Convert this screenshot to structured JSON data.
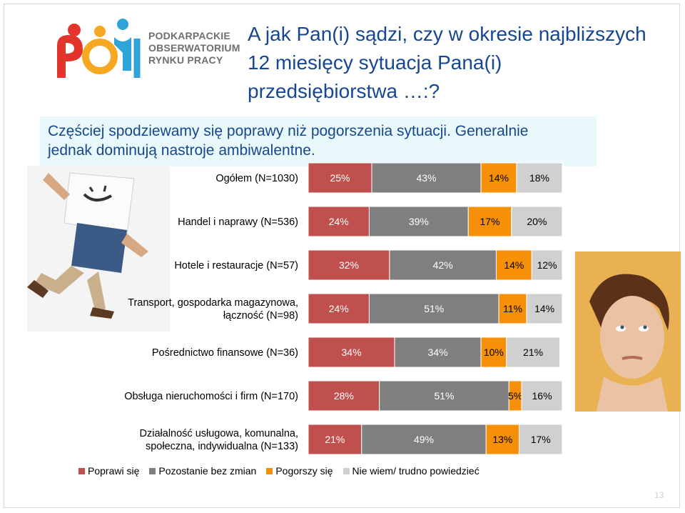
{
  "logo": {
    "lines": [
      "PODKARPACKIE",
      "OBSERWATORIUM",
      "RYNKU PRACY"
    ]
  },
  "title_lines": [
    "A jak Pan(i) sądzi, czy w okresie najbliższych",
    "12 miesięcy sytuacja Pana(i)",
    "przedsiębiorstwa …:?"
  ],
  "subtitle_lines": [
    "Częściej spodziewamy się poprawy niż pogorszenia sytuacji. Generalnie",
    "jednak dominują nastroje ambiwalentne."
  ],
  "page_number": "13",
  "colors": {
    "improve": "#c0504d",
    "nochange": "#7f7f7f",
    "worse": "#f79009",
    "dontknow": "#d0d0d0",
    "title": "#17478f"
  },
  "chart_data": {
    "type": "bar",
    "orientation": "horizontal",
    "stacked": true,
    "percent": true,
    "categories": [
      [
        "Ogółem (N=1030)"
      ],
      [
        "Handel i naprawy (N=536)"
      ],
      [
        "Hotele i restauracje (N=57)"
      ],
      [
        "Transport, gospodarka magazynowa,",
        "łączność (N=98)"
      ],
      [
        "Pośrednictwo finansowe (N=36)"
      ],
      [
        "Obsługa nieruchomości i firm (N=170)"
      ],
      [
        "Działalność usługowa, komunalna,",
        "społeczna, indywidualna (N=133)"
      ]
    ],
    "series": [
      {
        "name": "Poprawi się",
        "values": [
          25,
          24,
          32,
          24,
          34,
          28,
          21
        ]
      },
      {
        "name": "Pozostanie bez zmian",
        "values": [
          43,
          39,
          42,
          51,
          34,
          51,
          49
        ]
      },
      {
        "name": "Pogorszy się",
        "values": [
          14,
          17,
          14,
          11,
          10,
          5,
          13
        ]
      },
      {
        "name": "Nie wiem/ trudno powiedzieć",
        "values": [
          18,
          20,
          12,
          14,
          21,
          16,
          17
        ]
      }
    ],
    "data_labels": true,
    "legend_position": "bottom",
    "xlim": [
      0,
      100
    ]
  }
}
